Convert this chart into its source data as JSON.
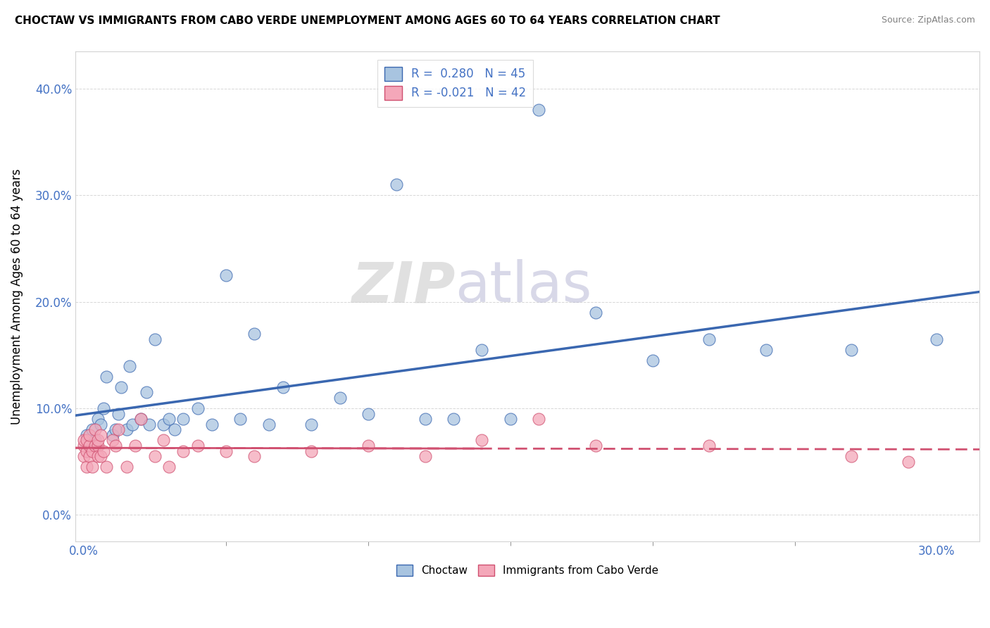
{
  "title": "CHOCTAW VS IMMIGRANTS FROM CABO VERDE UNEMPLOYMENT AMONG AGES 60 TO 64 YEARS CORRELATION CHART",
  "source": "Source: ZipAtlas.com",
  "ylim": [
    -0.025,
    0.435
  ],
  "xlim": [
    -0.003,
    0.315
  ],
  "choctaw_R": 0.28,
  "choctaw_N": 45,
  "caboverde_R": -0.021,
  "caboverde_N": 42,
  "blue_color": "#a8c4e0",
  "blue_line_color": "#3a67b0",
  "pink_color": "#f4a7b9",
  "pink_line_color": "#d05070",
  "watermark_zip": "ZIP",
  "watermark_atlas": "atlas",
  "choctaw_x": [
    0.001,
    0.002,
    0.003,
    0.004,
    0.005,
    0.006,
    0.007,
    0.008,
    0.01,
    0.011,
    0.012,
    0.013,
    0.015,
    0.016,
    0.017,
    0.02,
    0.022,
    0.023,
    0.025,
    0.028,
    0.03,
    0.032,
    0.035,
    0.04,
    0.045,
    0.05,
    0.055,
    0.06,
    0.065,
    0.07,
    0.08,
    0.09,
    0.1,
    0.11,
    0.12,
    0.13,
    0.14,
    0.15,
    0.16,
    0.18,
    0.2,
    0.22,
    0.24,
    0.27,
    0.3
  ],
  "choctaw_y": [
    0.075,
    0.065,
    0.08,
    0.07,
    0.09,
    0.085,
    0.1,
    0.13,
    0.075,
    0.08,
    0.095,
    0.12,
    0.08,
    0.14,
    0.085,
    0.09,
    0.115,
    0.085,
    0.165,
    0.085,
    0.09,
    0.08,
    0.09,
    0.1,
    0.085,
    0.225,
    0.09,
    0.17,
    0.085,
    0.12,
    0.085,
    0.11,
    0.095,
    0.31,
    0.09,
    0.09,
    0.155,
    0.09,
    0.38,
    0.19,
    0.145,
    0.165,
    0.155,
    0.155,
    0.165
  ],
  "caboverde_x": [
    0.0,
    0.0,
    0.0,
    0.001,
    0.001,
    0.001,
    0.002,
    0.002,
    0.002,
    0.003,
    0.003,
    0.004,
    0.004,
    0.005,
    0.005,
    0.005,
    0.006,
    0.006,
    0.007,
    0.008,
    0.01,
    0.011,
    0.012,
    0.015,
    0.018,
    0.02,
    0.025,
    0.028,
    0.03,
    0.035,
    0.04,
    0.05,
    0.06,
    0.08,
    0.1,
    0.12,
    0.14,
    0.16,
    0.18,
    0.22,
    0.27,
    0.29
  ],
  "caboverde_y": [
    0.055,
    0.065,
    0.07,
    0.06,
    0.07,
    0.045,
    0.055,
    0.065,
    0.075,
    0.06,
    0.045,
    0.065,
    0.08,
    0.065,
    0.055,
    0.07,
    0.055,
    0.075,
    0.06,
    0.045,
    0.07,
    0.065,
    0.08,
    0.045,
    0.065,
    0.09,
    0.055,
    0.07,
    0.045,
    0.06,
    0.065,
    0.06,
    0.055,
    0.06,
    0.065,
    0.055,
    0.07,
    0.09,
    0.065,
    0.065,
    0.055,
    0.05
  ]
}
